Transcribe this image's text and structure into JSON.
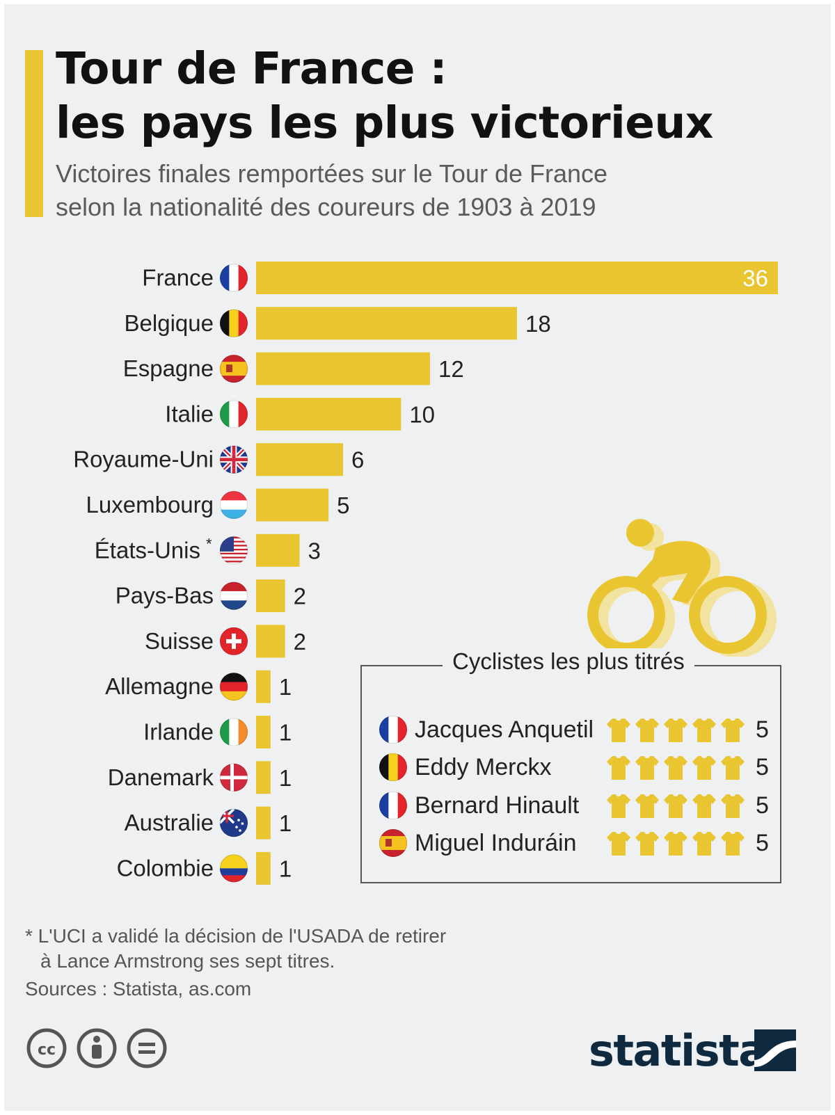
{
  "header": {
    "title_line1": "Tour de France :",
    "title_line2": "les pays les plus victorieux",
    "subtitle_line1": "Victoires finales remportées sur le Tour de France",
    "subtitle_line2": "selon la nationalité des coureurs de 1903 à 2019"
  },
  "colors": {
    "accent": "#e9c532",
    "bar": "#e9c532",
    "background": "#eef0f2"
  },
  "chart_data": {
    "type": "bar",
    "orientation": "horizontal",
    "categories": [
      "France",
      "Belgique",
      "Espagne",
      "Italie",
      "Royaume-Uni",
      "Luxembourg",
      "États-Unis",
      "Pays-Bas",
      "Suisse",
      "Allemagne",
      "Irlande",
      "Danemark",
      "Australie",
      "Colombie"
    ],
    "values": [
      36,
      18,
      12,
      10,
      6,
      5,
      3,
      2,
      2,
      1,
      1,
      1,
      1,
      1
    ],
    "flag_icons": [
      "flag-france-icon",
      "flag-belgium-icon",
      "flag-spain-icon",
      "flag-italy-icon",
      "flag-uk-icon",
      "flag-luxembourg-icon",
      "flag-usa-icon",
      "flag-netherlands-icon",
      "flag-switzerland-icon",
      "flag-germany-icon",
      "flag-ireland-icon",
      "flag-denmark-icon",
      "flag-australia-icon",
      "flag-colombia-icon"
    ],
    "annotations": [
      "",
      "",
      "",
      "",
      "",
      "",
      "*",
      "",
      "",
      "",
      "",
      "",
      "",
      ""
    ],
    "xlim": [
      0,
      36
    ],
    "grid": false,
    "legend": "none"
  },
  "riders_box": {
    "title": "Cyclistes les plus titrés",
    "riders": [
      {
        "name": "Jacques Anquetil",
        "flag": "flag-france-icon",
        "wins": 5,
        "count": "5"
      },
      {
        "name": "Eddy Merckx",
        "flag": "flag-belgium-icon",
        "wins": 5,
        "count": "5"
      },
      {
        "name": "Bernard Hinault",
        "flag": "flag-france-icon",
        "wins": 5,
        "count": "5"
      },
      {
        "name": "Miguel Induráin",
        "flag": "flag-spain-icon",
        "wins": 5,
        "count": "5"
      }
    ],
    "jersey_icon": "yellow-jersey-icon"
  },
  "footer": {
    "note_line1": "* L'UCI a validé la décision de l'USADA de retirer",
    "note_line2": "à Lance Armstrong ses sept titres.",
    "sources": "Sources : Statista, as.com",
    "brand": "statista",
    "license_icons": [
      "cc-icon",
      "attribution-icon",
      "no-derivatives-icon"
    ]
  }
}
